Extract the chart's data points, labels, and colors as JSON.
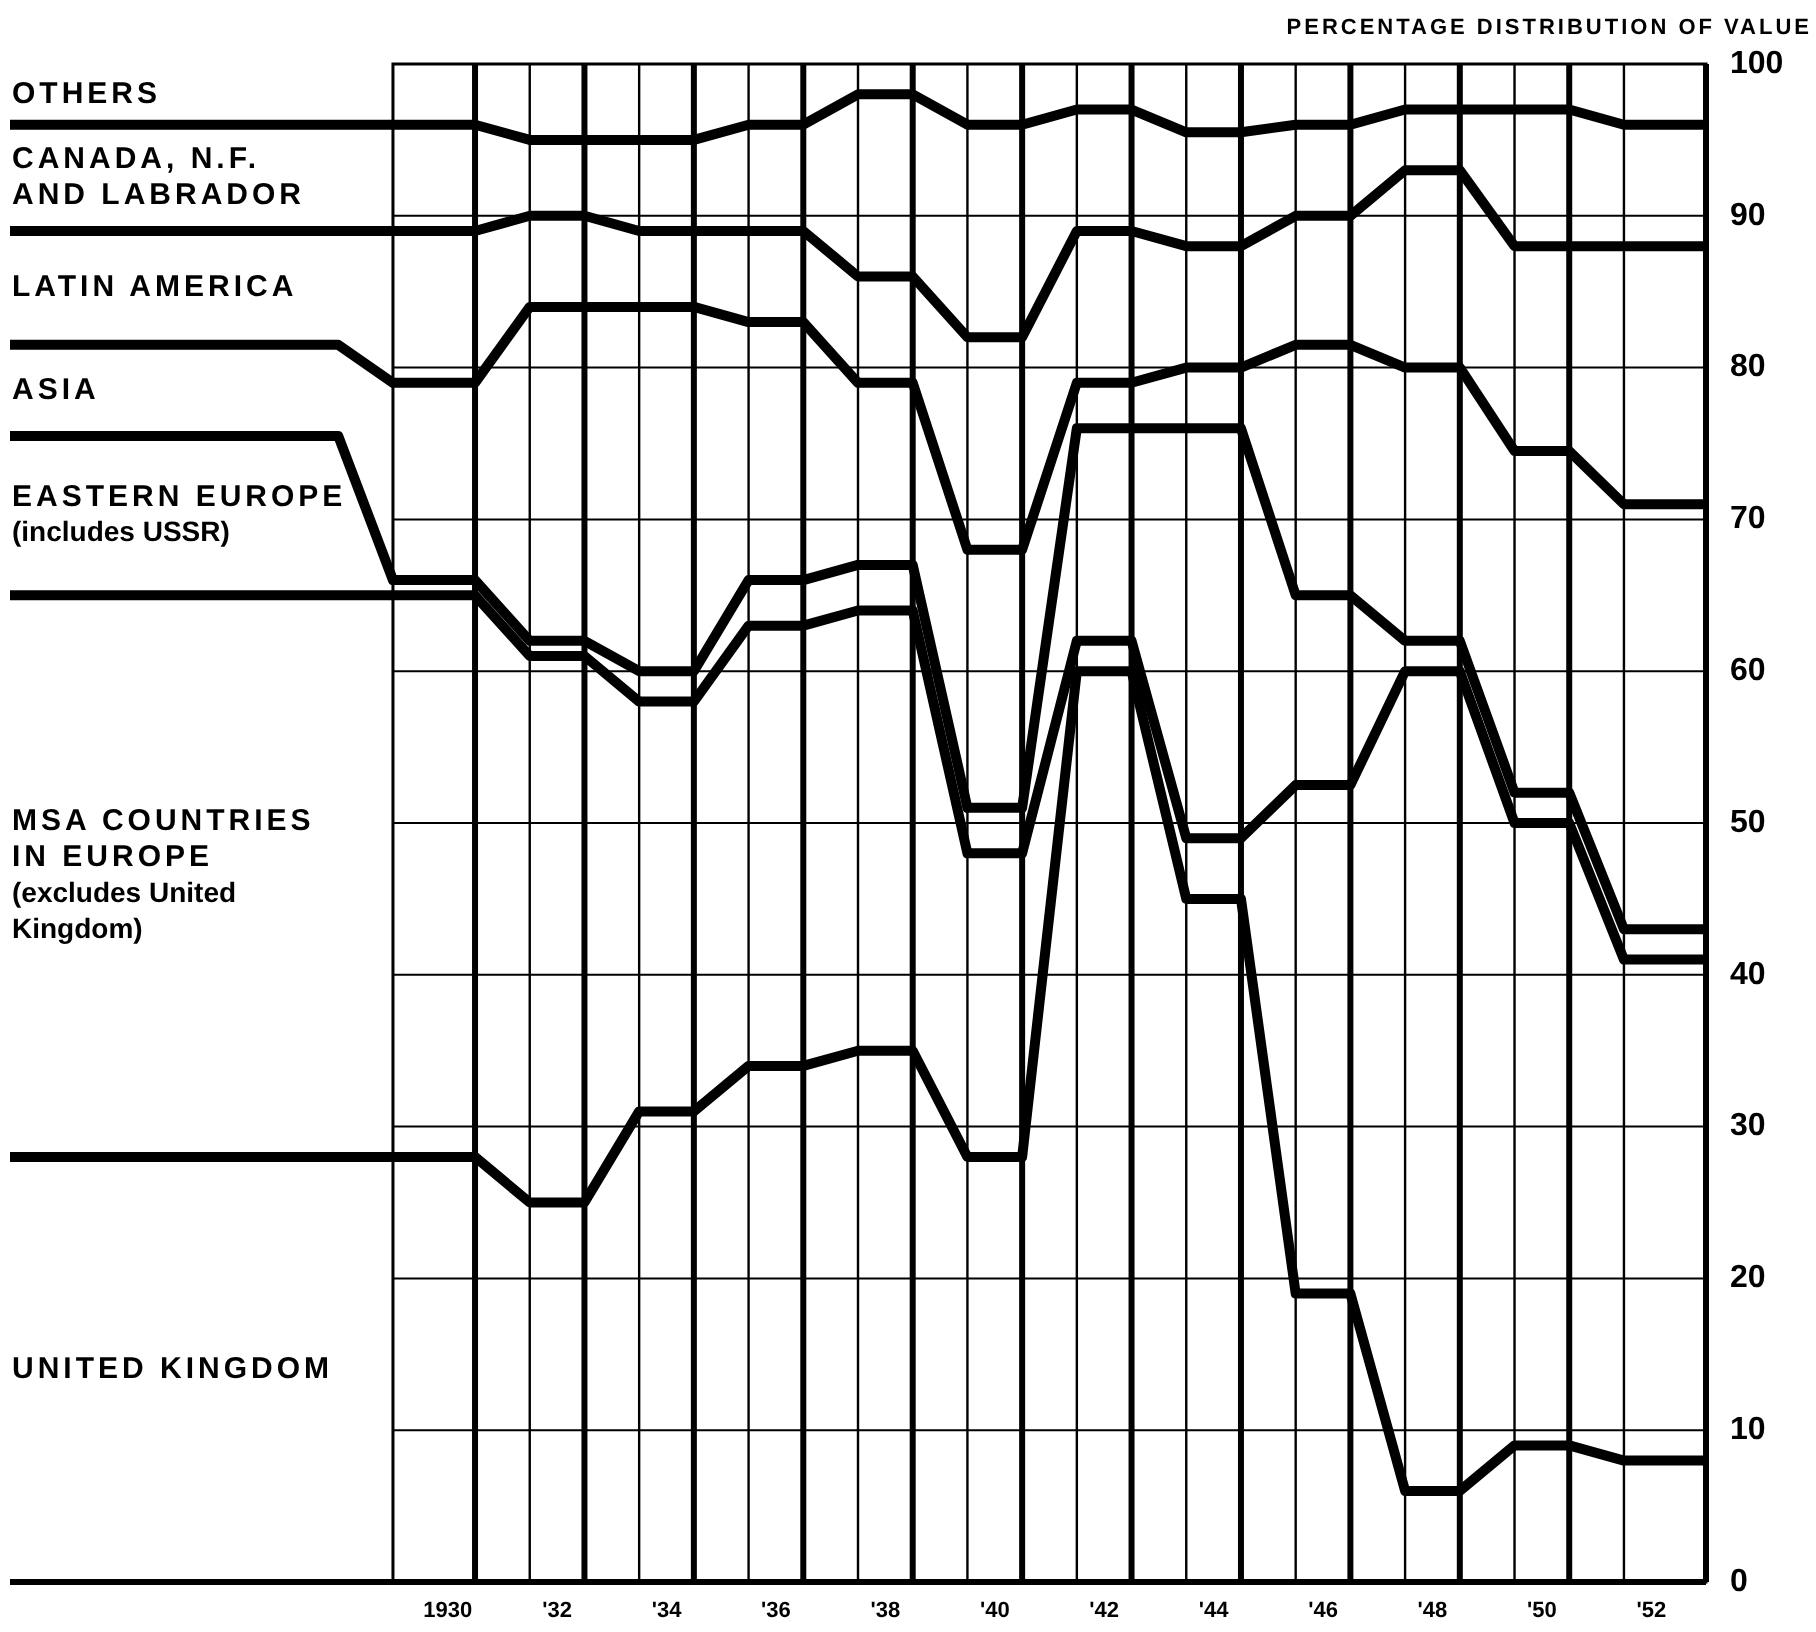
{
  "chart_data": {
    "type": "line",
    "ylabel": "PERCENTAGE DISTRIBUTION OF VALUE",
    "xlim": [
      1922,
      1953
    ],
    "ylim": [
      0,
      100
    ],
    "xticks": [
      1930,
      {
        "value": 1932,
        "label": "'32"
      },
      {
        "value": 1934,
        "label": "'34"
      },
      {
        "value": 1936,
        "label": "'36"
      },
      {
        "value": 1938,
        "label": "'38"
      },
      {
        "value": 1940,
        "label": "'40"
      },
      {
        "value": 1942,
        "label": "'42"
      },
      {
        "value": 1944,
        "label": "'44"
      },
      {
        "value": 1946,
        "label": "'46"
      },
      {
        "value": 1948,
        "label": "'48"
      },
      {
        "value": 1950,
        "label": "'50"
      },
      {
        "value": 1952,
        "label": "'52"
      }
    ],
    "yticks": [
      0,
      10,
      20,
      30,
      40,
      50,
      60,
      70,
      80,
      90,
      100
    ],
    "x": [
      1922,
      1928,
      1929,
      1930.5,
      1931.5,
      1932.5,
      1933.5,
      1934.5,
      1935.5,
      1936.5,
      1937.5,
      1938.5,
      1939.5,
      1940.5,
      1941.5,
      1942.5,
      1943.5,
      1944.5,
      1945.5,
      1946.5,
      1947.5,
      1948.5,
      1949.5,
      1950.5,
      1951.5,
      1953
    ],
    "series": [
      {
        "color": "#000000",
        "values": [
          96,
          96,
          96,
          96,
          95,
          95,
          95,
          95,
          96,
          96,
          98,
          98,
          96,
          96,
          97,
          97,
          95.5,
          95.5,
          96,
          96,
          97,
          97,
          97,
          97,
          96,
          96
        ]
      },
      {
        "color": "#000000",
        "values": [
          89,
          89,
          89,
          89,
          90,
          90,
          89,
          89,
          89,
          89,
          86,
          86,
          82,
          82,
          89,
          89,
          88,
          88,
          90,
          90,
          93,
          93,
          88,
          88,
          88,
          88
        ]
      },
      {
        "color": "#000000",
        "values": [
          81.5,
          81.5,
          79,
          79,
          84,
          84,
          84,
          84,
          83,
          83,
          79,
          79,
          68,
          68,
          79,
          79,
          80,
          80,
          81.5,
          81.5,
          80,
          80,
          74.5,
          74.5,
          71,
          71
        ]
      },
      {
        "color": "#000000",
        "values": [
          75.5,
          75.5,
          66,
          66,
          62,
          62,
          60,
          60,
          66,
          66,
          67,
          67,
          51,
          51,
          76,
          76,
          76,
          76,
          65,
          65,
          62,
          62,
          52,
          52,
          43,
          43
        ]
      },
      {
        "color": "#000000",
        "values": [
          65,
          65,
          65,
          65,
          61,
          61,
          58,
          58,
          63,
          63,
          64,
          64,
          48,
          48,
          62,
          62,
          49,
          49,
          52.5,
          52.5,
          60,
          60,
          50,
          50,
          41,
          41
        ]
      },
      {
        "color": "#000000",
        "values": [
          28,
          28,
          28,
          28,
          25,
          25,
          31,
          31,
          34,
          34,
          35,
          35,
          28,
          28,
          60,
          60,
          45,
          45,
          19,
          19,
          6,
          6,
          9,
          9,
          8,
          8
        ]
      }
    ],
    "annotations": [
      "OTHERS",
      "CANADA, N.F.\nAND LABRADOR",
      "LATIN AMERICA",
      "ASIA",
      "EASTERN EUROPE\n(includes USSR)",
      "MSA COUNTRIES\nIN EUROPE\n(excludes United\nKingdom)",
      "UNITED KINGDOM"
    ],
    "grid": true,
    "legend": false,
    "marker": "none",
    "line_style": "solid"
  }
}
